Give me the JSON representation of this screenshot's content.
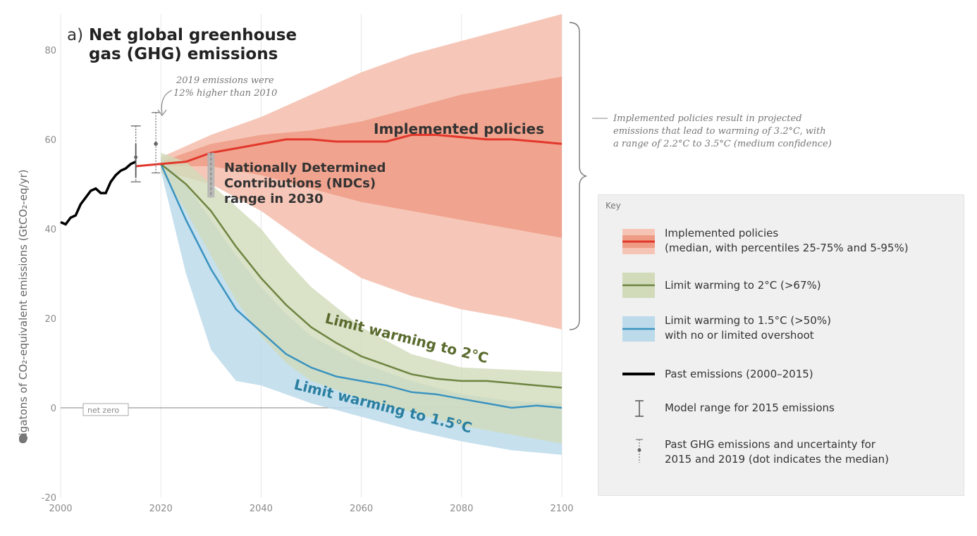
{
  "figure": {
    "panel_label": "a)",
    "title_line1": "Net global greenhouse",
    "title_line2": "gas (GHG) emissions",
    "ylabel": "Gigatons of CO₂-equivalent emissions (GtCO₂-eq/yr)",
    "annotation_2019_line1": "2019 emissions were",
    "annotation_2019_line2": "12% higher than 2010",
    "label_implemented": "Implemented policies",
    "label_ndc_line1": "Nationally Determined",
    "label_ndc_line2": "Contributions (NDCs)",
    "label_ndc_line3": "range in 2030",
    "label_2c": "Limit warming to 2°C",
    "label_15c": "Limit warming to 1.5°C",
    "net_zero": "net zero",
    "brace_note_line1": "Implemented policies result in projected",
    "brace_note_line2": "emissions that lead to warming of 3.2°C, with",
    "brace_note_line3": "a range of 2.2°C to 3.5°C (medium confidence)"
  },
  "key": {
    "title": "Key",
    "items": [
      {
        "label": "Implemented policies\n(median, with percentiles 25-75% and 5-95%)"
      },
      {
        "label": "Limit warming to 2°C (>67%)"
      },
      {
        "label": "Limit warming to 1.5°C (>50%)\nwith no or limited overshoot"
      },
      {
        "label": "Past emissions (2000–2015)"
      },
      {
        "label": "Model range for 2015 emissions"
      },
      {
        "label": "Past GHG emissions and uncertainty for\n2015 and 2019 (dot indicates the median)"
      }
    ]
  },
  "colors": {
    "implemented_outer": "#f6c4b4",
    "implemented_inner": "#ef9c86",
    "implemented_line": "#e2372b",
    "c2_band": "#d1dbba",
    "c2_line": "#6e8440",
    "c15_band": "#bcdaea",
    "c15_line": "#3a93c0",
    "past": "#000000",
    "zero_line": "#9a9a9a"
  },
  "chart_data": {
    "type": "area",
    "xlim": [
      2000,
      2100
    ],
    "ylim": [
      -20,
      88
    ],
    "x_ticks": [
      2000,
      2020,
      2040,
      2060,
      2080,
      2100
    ],
    "y_ticks": [
      -20,
      0,
      20,
      40,
      60,
      80
    ],
    "series": [
      {
        "name": "Past emissions (2000–2015)",
        "kind": "line",
        "x": [
          2000,
          2001,
          2002,
          2003,
          2004,
          2005,
          2006,
          2007,
          2008,
          2009,
          2010,
          2011,
          2012,
          2013,
          2014,
          2015
        ],
        "y": [
          41.5,
          41,
          42.5,
          43,
          45.5,
          47,
          48.5,
          49,
          48,
          48,
          50.5,
          52,
          53,
          53.5,
          54.5,
          55
        ]
      },
      {
        "name": "Implemented policies",
        "kind": "line",
        "x": [
          2015,
          2020,
          2025,
          2030,
          2035,
          2040,
          2045,
          2050,
          2055,
          2060,
          2065,
          2070,
          2075,
          2080,
          2085,
          2090,
          2095,
          2100
        ],
        "y": [
          54,
          54.5,
          55,
          57,
          58,
          59,
          60,
          60,
          59.5,
          59.5,
          59.5,
          61,
          61,
          60.5,
          60,
          60,
          59.5,
          59
        ]
      },
      {
        "name": "Implemented policies 25-75%",
        "kind": "band",
        "x": [
          2020,
          2030,
          2040,
          2050,
          2060,
          2070,
          2080,
          2090,
          2100
        ],
        "low": [
          54,
          54,
          52,
          49,
          46,
          44,
          42,
          40,
          38
        ],
        "high": [
          55,
          59,
          61,
          62,
          64,
          67,
          70,
          72,
          74
        ]
      },
      {
        "name": "Implemented policies 5-95%",
        "kind": "band",
        "x": [
          2020,
          2030,
          2040,
          2050,
          2060,
          2070,
          2080,
          2090,
          2100
        ],
        "low": [
          53,
          50,
          44,
          36,
          29,
          25,
          22,
          20,
          17.5
        ],
        "high": [
          56,
          61,
          65,
          70,
          75,
          79,
          82,
          85,
          88
        ]
      },
      {
        "name": "Limit warming to 2°C",
        "kind": "line",
        "x": [
          2020,
          2025,
          2030,
          2035,
          2040,
          2045,
          2050,
          2055,
          2060,
          2065,
          2070,
          2075,
          2080,
          2085,
          2090,
          2095,
          2100
        ],
        "y": [
          54.5,
          50,
          44,
          36,
          29,
          23,
          18,
          14.5,
          11.5,
          9.5,
          7.5,
          6.5,
          6,
          6,
          5.5,
          5,
          4.5
        ]
      },
      {
        "name": "Limit warming to 2°C range",
        "kind": "band",
        "x": [
          2020,
          2025,
          2030,
          2035,
          2040,
          2045,
          2050,
          2060,
          2070,
          2080,
          2090,
          2100
        ],
        "low": [
          53,
          44,
          34,
          24,
          16,
          10,
          6,
          2,
          -1,
          -4,
          -6,
          -8
        ],
        "high": [
          57,
          55,
          50,
          45,
          40,
          33,
          27,
          18,
          12,
          9,
          8.5,
          8
        ]
      },
      {
        "name": "Limit warming to 1.5°C",
        "kind": "line",
        "x": [
          2020,
          2025,
          2030,
          2035,
          2040,
          2045,
          2050,
          2055,
          2060,
          2065,
          2070,
          2075,
          2080,
          2085,
          2090,
          2095,
          2100
        ],
        "y": [
          54.5,
          42,
          31,
          22,
          17,
          12,
          9,
          7,
          6,
          5,
          3.5,
          3,
          2,
          1,
          0,
          0.5,
          0
        ]
      },
      {
        "name": "Limit warming to 1.5°C range",
        "kind": "band",
        "x": [
          2020,
          2025,
          2030,
          2035,
          2040,
          2045,
          2050,
          2060,
          2070,
          2080,
          2090,
          2100
        ],
        "low": [
          53,
          30,
          13,
          6,
          5,
          3,
          1,
          -2,
          -5,
          -7.5,
          -9.5,
          -10.5
        ],
        "high": [
          56,
          50,
          42,
          34,
          27,
          21,
          16,
          10,
          6,
          3,
          1.5,
          1
        ]
      }
    ],
    "error_bars": [
      {
        "name": "Model range for 2015 emissions",
        "x": 2015,
        "low": 50.5,
        "high": 63,
        "median": 56
      },
      {
        "name": "Past GHG emissions 2019",
        "x": 2019,
        "low": 52.5,
        "high": 66,
        "median": 59
      },
      {
        "name": "NDCs range in 2030",
        "x": 2030,
        "low": 47,
        "high": 57
      }
    ]
  }
}
